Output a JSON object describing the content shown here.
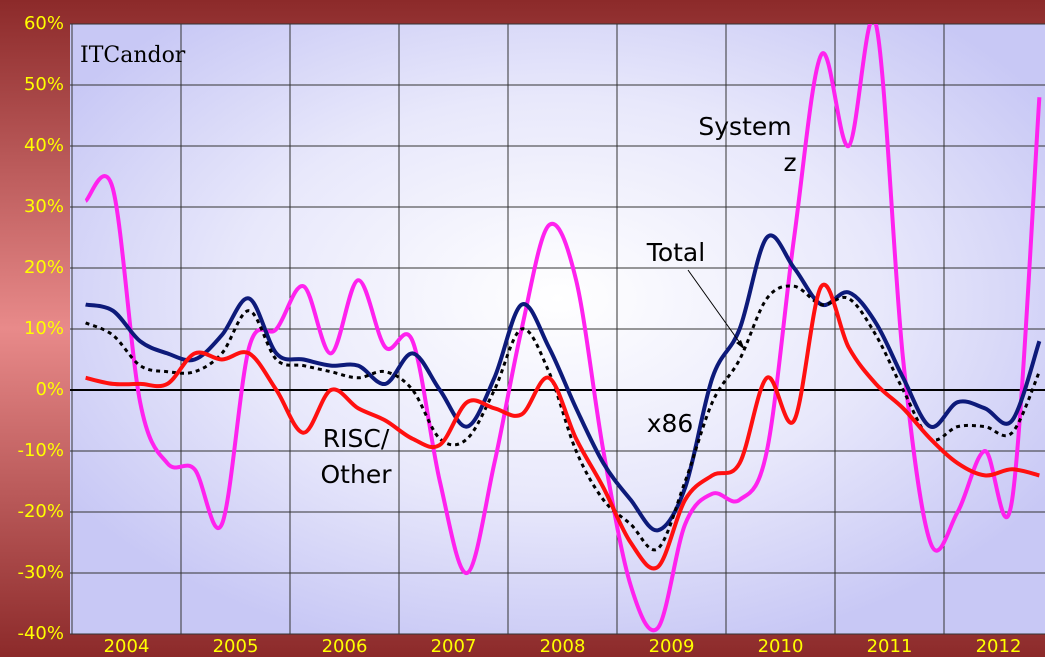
{
  "chart_data": {
    "type": "line",
    "logo": "ITCandor",
    "categories": [
      null,
      "2004",
      null,
      null,
      null,
      "2005",
      null,
      null,
      null,
      "2006",
      null,
      null,
      null,
      "2007",
      null,
      null,
      null,
      "2008",
      null,
      null,
      null,
      "2009",
      null,
      null,
      null,
      "2010",
      null,
      null,
      null,
      "2011",
      null,
      null,
      null,
      "2012",
      null,
      null
    ],
    "series": [
      {
        "name": "System z",
        "color": "#ff22ee",
        "style": "solid",
        "values": [
          31,
          33,
          -2,
          -12,
          -13,
          -22,
          7,
          10,
          17,
          6,
          18,
          7,
          8,
          -15,
          -30,
          -12,
          10,
          27,
          18,
          -10,
          -32,
          -39,
          -22,
          -17,
          -18,
          -10,
          25,
          55,
          40,
          60,
          5,
          -25,
          -20,
          -10,
          -18,
          48
        ]
      },
      {
        "name": "x86",
        "color": "#0d1a7a",
        "style": "solid",
        "values": [
          14,
          13,
          8,
          6,
          5,
          9,
          15,
          6,
          5,
          4,
          4,
          1,
          6,
          0,
          -6,
          2,
          14,
          7,
          -3,
          -12,
          -18,
          -23,
          -16,
          2,
          10,
          25,
          20,
          14,
          16,
          11,
          2,
          -6,
          -2,
          -3,
          -5,
          8
        ]
      },
      {
        "name": "Total",
        "color": "#000000",
        "style": "dotted",
        "values": [
          11,
          9,
          4,
          3,
          3,
          6,
          13,
          5,
          4,
          3,
          2,
          3,
          0,
          -8,
          -8,
          0,
          10,
          3,
          -10,
          -18,
          -22,
          -26,
          -15,
          -2,
          5,
          15,
          17,
          14,
          15,
          9,
          0,
          -8,
          -6,
          -6,
          -7,
          3
        ]
      },
      {
        "name": "RISC/Other",
        "color": "#ff1010",
        "style": "solid",
        "values": [
          2,
          1,
          1,
          1,
          6,
          5,
          6,
          0,
          -7,
          0,
          -3,
          -5,
          -8,
          -9,
          -2,
          -3,
          -4,
          2,
          -8,
          -16,
          -25,
          -29,
          -18,
          -14,
          -12,
          2,
          -5,
          17,
          7,
          1,
          -3,
          -8,
          -12,
          -14,
          -13,
          -14
        ]
      }
    ],
    "annotations": [
      {
        "lines": [
          "System",
          "z"
        ]
      },
      {
        "lines": [
          "Total"
        ]
      },
      {
        "lines": [
          "x86"
        ]
      },
      {
        "lines": [
          "RISC/",
          "Other"
        ]
      }
    ],
    "ylim": [
      -40,
      60
    ],
    "yticks": [
      {
        "value": -40,
        "label": "-40%"
      },
      {
        "value": -30,
        "label": "-30%"
      },
      {
        "value": -20,
        "label": "-20%"
      },
      {
        "value": -10,
        "label": "-10%"
      },
      {
        "value": 0,
        "label": "0%"
      },
      {
        "value": 10,
        "label": "10%"
      },
      {
        "value": 20,
        "label": "20%"
      },
      {
        "value": 30,
        "label": "30%"
      },
      {
        "value": 40,
        "label": "40%"
      },
      {
        "value": 50,
        "label": "50%"
      },
      {
        "value": 60,
        "label": "60%"
      }
    ],
    "grid": true
  }
}
